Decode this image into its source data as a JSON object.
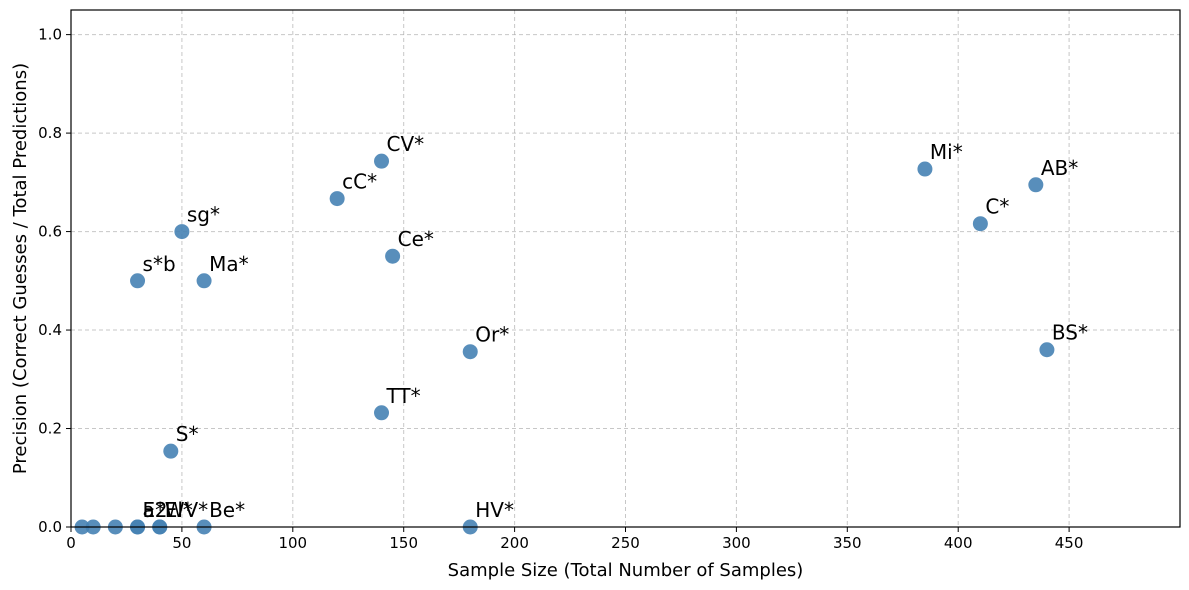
{
  "chart_data": {
    "type": "scatter",
    "title": "",
    "xlabel": "Sample Size (Total Number of Samples)",
    "ylabel": "Precision (Correct Guesses / Total Predictions)",
    "xlim": [
      0,
      500
    ],
    "ylim": [
      0,
      1.05
    ],
    "xticks": [
      0,
      50,
      100,
      150,
      200,
      250,
      300,
      350,
      400,
      450
    ],
    "yticks": [
      0.0,
      0.2,
      0.4,
      0.6,
      0.8,
      1.0
    ],
    "xtick_labels": [
      "0",
      "50",
      "100",
      "150",
      "200",
      "250",
      "300",
      "350",
      "400",
      "450"
    ],
    "ytick_labels": [
      "0.0",
      "0.2",
      "0.4",
      "0.6",
      "0.8",
      "1.0"
    ],
    "grid": true,
    "marker_color": "#4682b4",
    "points": [
      {
        "label": "",
        "x": 5,
        "y": 0.0
      },
      {
        "label": "",
        "x": 10,
        "y": 0.0
      },
      {
        "label": "",
        "x": 20,
        "y": 0.0
      },
      {
        "label": "a2",
        "x": 30,
        "y": 0.0
      },
      {
        "label": "E*",
        "x": 30,
        "y": 0.0
      },
      {
        "label": "El*",
        "x": 40,
        "y": 0.0
      },
      {
        "label": "WV*",
        "x": 40,
        "y": 0.0
      },
      {
        "label": "Be*",
        "x": 60,
        "y": 0.0
      },
      {
        "label": "HV*",
        "x": 180,
        "y": 0.0
      },
      {
        "label": "s*b",
        "x": 30,
        "y": 0.5
      },
      {
        "label": "S*",
        "x": 45,
        "y": 0.154
      },
      {
        "label": "sg*",
        "x": 50,
        "y": 0.6
      },
      {
        "label": "Ma*",
        "x": 60,
        "y": 0.5
      },
      {
        "label": "cC*",
        "x": 120,
        "y": 0.667
      },
      {
        "label": "CV*",
        "x": 140,
        "y": 0.743
      },
      {
        "label": "TT*",
        "x": 140,
        "y": 0.232
      },
      {
        "label": "Ce*",
        "x": 145,
        "y": 0.55
      },
      {
        "label": "Or*",
        "x": 180,
        "y": 0.356
      },
      {
        "label": "Mi*",
        "x": 385,
        "y": 0.727
      },
      {
        "label": "C*",
        "x": 410,
        "y": 0.616
      },
      {
        "label": "AB*",
        "x": 435,
        "y": 0.695
      },
      {
        "label": "BS*",
        "x": 440,
        "y": 0.36
      }
    ]
  }
}
